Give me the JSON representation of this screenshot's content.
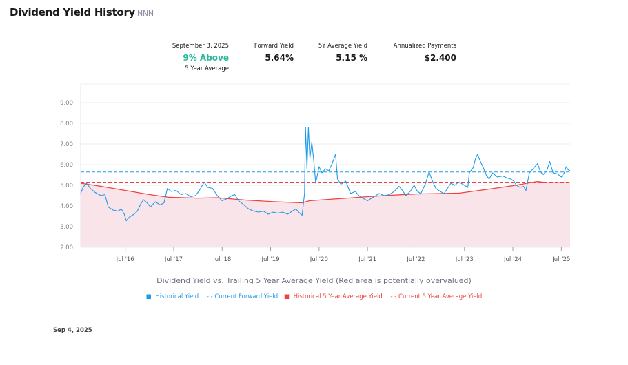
{
  "header": {
    "title": "Dividend Yield History",
    "ticker": "NNN"
  },
  "stats": {
    "date": "September 3, 2025",
    "status": "9% Above",
    "status_sub": "5 Year Average",
    "forward_label": "Forward Yield",
    "forward_value": "5.64%",
    "avg_label": "5Y Average Yield",
    "avg_value": "5.15 %",
    "annual_label": "Annualized Payments",
    "annual_value": "$2.400"
  },
  "colors": {
    "yield": "#1e9be8",
    "avg": "#f04040",
    "area": "#f9e4ea",
    "status": "#27b99a"
  },
  "chart_data": {
    "type": "line",
    "title": "Dividend Yield vs. Trailing 5 Year Average Yield (Red area is potentially overvalued)",
    "ylim": [
      2,
      9.9
    ],
    "xlim": [
      2015.58,
      2025.68
    ],
    "y_ticks": [
      "2.00",
      "3.00",
      "4.00",
      "5.00",
      "6.00",
      "7.00",
      "8.00",
      "9.00"
    ],
    "x_ticks": [
      "Jul '16",
      "Jul '17",
      "Jul '18",
      "Jul '19",
      "Jul '20",
      "Jul '21",
      "Jul '22",
      "Jul '23",
      "Jul '24",
      "Jul '25"
    ],
    "grid": true,
    "legend_position": "bottom",
    "legend": [
      "Historical Yield",
      "- - Current Forward Yield",
      "Historical 5 Year Average Yield",
      "- - Current 5 Year Average Yield"
    ],
    "current_forward_yield": 5.64,
    "current_5y_average_yield": 5.15,
    "series": [
      {
        "name": "Historical Yield",
        "points": [
          [
            2015.58,
            4.6
          ],
          [
            2015.63,
            4.9
          ],
          [
            2015.7,
            5.1
          ],
          [
            2015.78,
            4.85
          ],
          [
            2015.88,
            4.65
          ],
          [
            2016.0,
            4.5
          ],
          [
            2016.08,
            4.55
          ],
          [
            2016.15,
            3.95
          ],
          [
            2016.25,
            3.8
          ],
          [
            2016.35,
            3.75
          ],
          [
            2016.42,
            3.85
          ],
          [
            2016.48,
            3.6
          ],
          [
            2016.52,
            3.28
          ],
          [
            2016.58,
            3.45
          ],
          [
            2016.68,
            3.6
          ],
          [
            2016.75,
            3.75
          ],
          [
            2016.82,
            4.1
          ],
          [
            2016.88,
            4.3
          ],
          [
            2016.95,
            4.15
          ],
          [
            2017.02,
            3.95
          ],
          [
            2017.12,
            4.2
          ],
          [
            2017.22,
            4.05
          ],
          [
            2017.3,
            4.15
          ],
          [
            2017.37,
            4.85
          ],
          [
            2017.45,
            4.7
          ],
          [
            2017.55,
            4.75
          ],
          [
            2017.65,
            4.55
          ],
          [
            2017.75,
            4.6
          ],
          [
            2017.85,
            4.45
          ],
          [
            2017.95,
            4.5
          ],
          [
            2018.03,
            4.75
          ],
          [
            2018.13,
            5.15
          ],
          [
            2018.2,
            4.9
          ],
          [
            2018.3,
            4.85
          ],
          [
            2018.4,
            4.5
          ],
          [
            2018.5,
            4.25
          ],
          [
            2018.6,
            4.35
          ],
          [
            2018.7,
            4.5
          ],
          [
            2018.76,
            4.55
          ],
          [
            2018.84,
            4.25
          ],
          [
            2018.95,
            4.05
          ],
          [
            2019.05,
            3.85
          ],
          [
            2019.15,
            3.75
          ],
          [
            2019.25,
            3.7
          ],
          [
            2019.35,
            3.75
          ],
          [
            2019.45,
            3.6
          ],
          [
            2019.55,
            3.7
          ],
          [
            2019.65,
            3.65
          ],
          [
            2019.75,
            3.7
          ],
          [
            2019.85,
            3.6
          ],
          [
            2019.95,
            3.75
          ],
          [
            2020.02,
            3.85
          ],
          [
            2020.1,
            3.65
          ],
          [
            2020.15,
            3.55
          ],
          [
            2020.2,
            4.6
          ],
          [
            2020.22,
            7.8
          ],
          [
            2020.25,
            5.8
          ],
          [
            2020.28,
            7.8
          ],
          [
            2020.31,
            6.3
          ],
          [
            2020.35,
            7.1
          ],
          [
            2020.39,
            6.2
          ],
          [
            2020.43,
            5.1
          ],
          [
            2020.5,
            5.9
          ],
          [
            2020.56,
            5.6
          ],
          [
            2020.63,
            5.8
          ],
          [
            2020.7,
            5.7
          ],
          [
            2020.76,
            6.0
          ],
          [
            2020.84,
            6.5
          ],
          [
            2020.88,
            5.3
          ],
          [
            2020.95,
            5.05
          ],
          [
            2021.05,
            5.2
          ],
          [
            2021.15,
            4.6
          ],
          [
            2021.25,
            4.7
          ],
          [
            2021.32,
            4.5
          ],
          [
            2021.42,
            4.35
          ],
          [
            2021.5,
            4.25
          ],
          [
            2021.6,
            4.4
          ],
          [
            2021.74,
            4.6
          ],
          [
            2021.85,
            4.5
          ],
          [
            2021.95,
            4.55
          ],
          [
            2022.05,
            4.7
          ],
          [
            2022.15,
            4.95
          ],
          [
            2022.22,
            4.75
          ],
          [
            2022.29,
            4.5
          ],
          [
            2022.38,
            4.7
          ],
          [
            2022.46,
            5.0
          ],
          [
            2022.53,
            4.7
          ],
          [
            2022.6,
            4.6
          ],
          [
            2022.7,
            5.1
          ],
          [
            2022.77,
            5.65
          ],
          [
            2022.84,
            5.2
          ],
          [
            2022.91,
            4.85
          ],
          [
            2023.0,
            4.7
          ],
          [
            2023.08,
            4.6
          ],
          [
            2023.15,
            4.85
          ],
          [
            2023.22,
            5.1
          ],
          [
            2023.3,
            5.0
          ],
          [
            2023.38,
            5.15
          ],
          [
            2023.43,
            5.1
          ],
          [
            2023.5,
            5.0
          ],
          [
            2023.57,
            4.9
          ],
          [
            2023.6,
            5.6
          ],
          [
            2023.68,
            5.85
          ],
          [
            2023.73,
            6.3
          ],
          [
            2023.77,
            6.5
          ],
          [
            2023.82,
            6.2
          ],
          [
            2023.88,
            5.9
          ],
          [
            2023.95,
            5.5
          ],
          [
            2024.01,
            5.3
          ],
          [
            2024.08,
            5.6
          ],
          [
            2024.18,
            5.4
          ],
          [
            2024.29,
            5.45
          ],
          [
            2024.38,
            5.35
          ],
          [
            2024.46,
            5.3
          ],
          [
            2024.52,
            5.2
          ],
          [
            2024.57,
            5.0
          ],
          [
            2024.65,
            4.9
          ],
          [
            2024.72,
            4.95
          ],
          [
            2024.77,
            4.75
          ],
          [
            2024.84,
            5.6
          ],
          [
            2024.92,
            5.8
          ],
          [
            2025.01,
            6.05
          ],
          [
            2025.06,
            5.7
          ],
          [
            2025.12,
            5.5
          ],
          [
            2025.2,
            5.7
          ],
          [
            2025.26,
            6.15
          ],
          [
            2025.33,
            5.6
          ],
          [
            2025.42,
            5.55
          ],
          [
            2025.5,
            5.4
          ],
          [
            2025.56,
            5.6
          ],
          [
            2025.6,
            5.9
          ],
          [
            2025.64,
            5.75
          ],
          [
            2025.68,
            5.7
          ]
        ]
      },
      {
        "name": "Historical 5 Year Average Yield",
        "points": [
          [
            2015.58,
            5.1
          ],
          [
            2016.0,
            4.95
          ],
          [
            2016.5,
            4.75
          ],
          [
            2017.0,
            4.55
          ],
          [
            2017.4,
            4.42
          ],
          [
            2018.0,
            4.38
          ],
          [
            2018.4,
            4.4
          ],
          [
            2019.0,
            4.28
          ],
          [
            2019.6,
            4.2
          ],
          [
            2020.15,
            4.15
          ],
          [
            2020.3,
            4.25
          ],
          [
            2020.9,
            4.35
          ],
          [
            2021.5,
            4.45
          ],
          [
            2022.0,
            4.52
          ],
          [
            2022.5,
            4.58
          ],
          [
            2023.0,
            4.6
          ],
          [
            2023.4,
            4.62
          ],
          [
            2023.9,
            4.78
          ],
          [
            2024.5,
            4.98
          ],
          [
            2025.0,
            5.18
          ],
          [
            2025.2,
            5.13
          ],
          [
            2025.68,
            5.12
          ]
        ]
      }
    ]
  },
  "footer": {
    "date": "Sep 4, 2025"
  }
}
